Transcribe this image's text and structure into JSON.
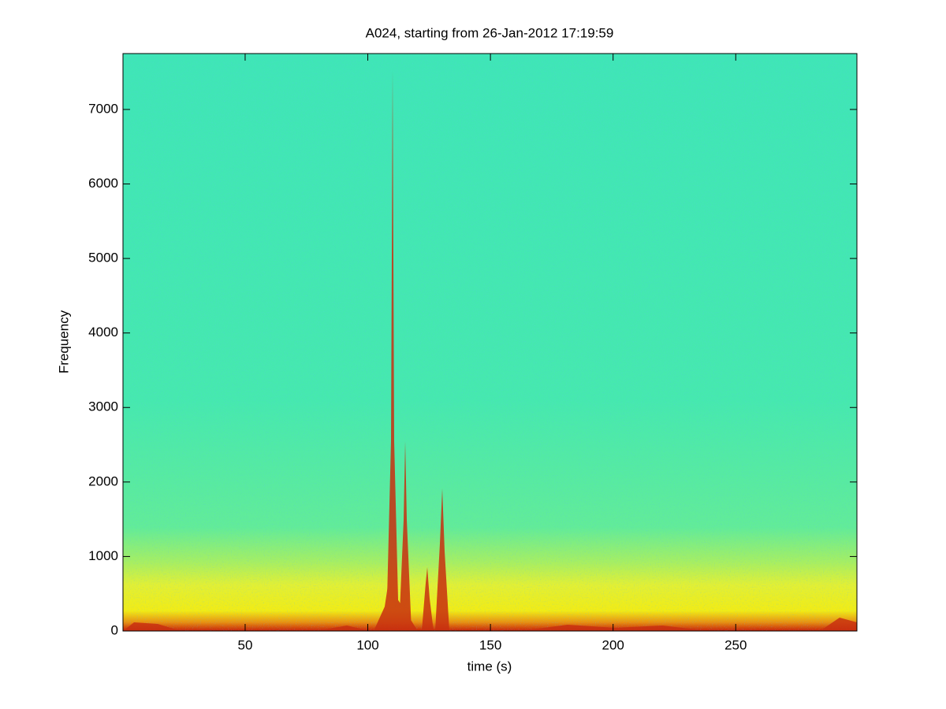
{
  "chart_data": {
    "type": "spectrogram",
    "title": "A024, starting from 26-Jan-2012 17:19:59",
    "x_label": "time (s)",
    "y_label": "Frequency",
    "xlim": [
      0.2,
      299.4
    ],
    "xticks": [
      50,
      100,
      150,
      200,
      250
    ],
    "ylim": [
      0,
      7750
    ],
    "yticks": [
      0,
      1000,
      2000,
      3000,
      4000,
      5000,
      6000,
      7000
    ]
  }
}
